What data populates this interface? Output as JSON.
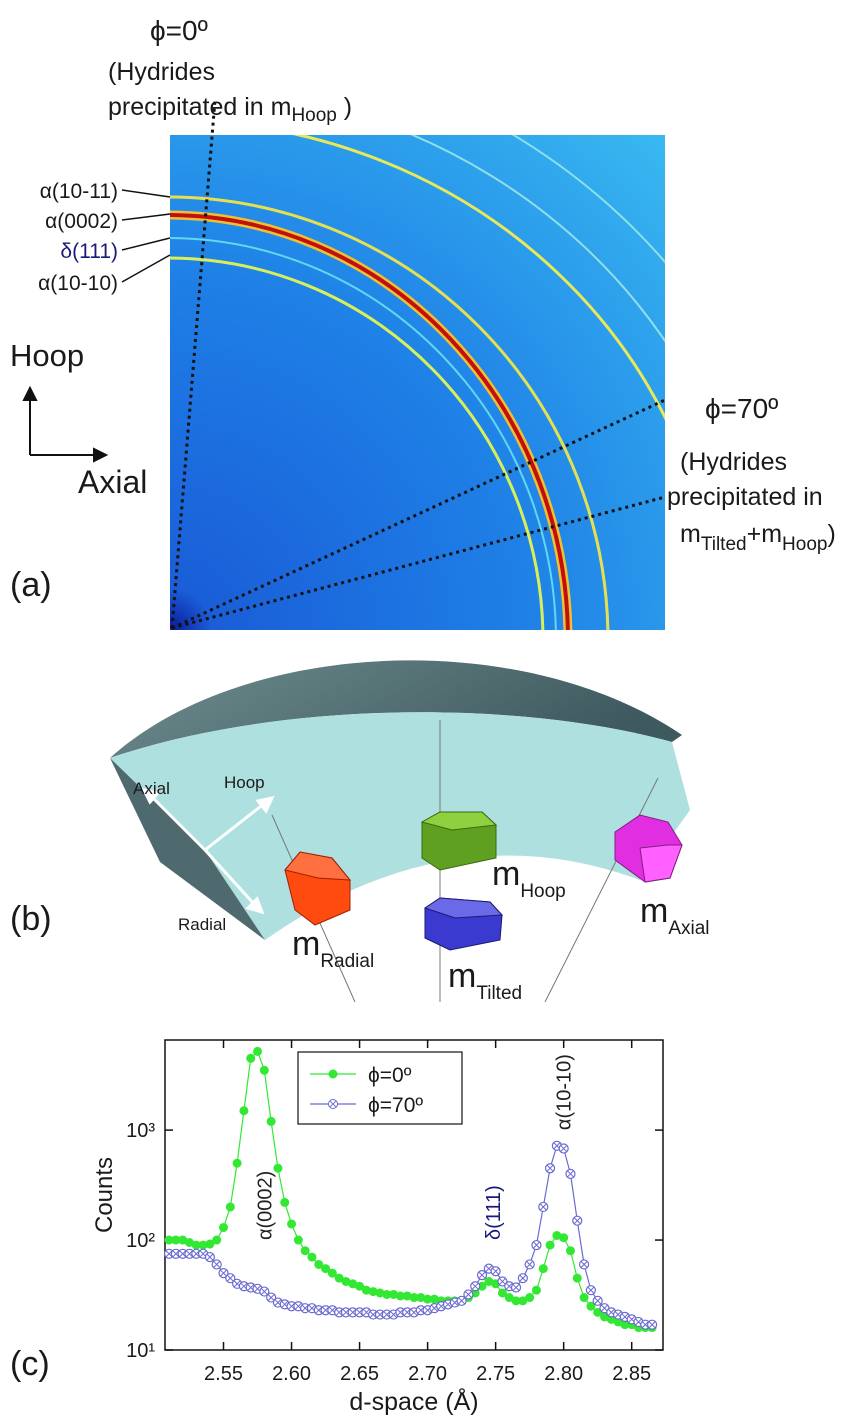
{
  "panel_a": {
    "phi0": "ϕ=0º",
    "phi0_note_1": "(Hydrides",
    "phi0_note_2": "precipitated in m",
    "phi0_note_sub": "Hoop",
    "phi0_note_end": " )",
    "rings": [
      "α(10-11)",
      "α(0002)",
      "δ(111)",
      "α(10-10)"
    ],
    "dir_up": "Hoop",
    "dir_right": "Axial",
    "label": "(a)",
    "phi70": "ϕ=70º",
    "phi70_note_1": "(Hydrides",
    "phi70_note_2": "precipitated in",
    "phi70_m1": "m",
    "phi70_sub1": "Tilted",
    "phi70_m2": "+m",
    "phi70_sub2": "Hoop",
    "phi70_end": ")"
  },
  "panel_b": {
    "axial": "Axial",
    "hoop": "Hoop",
    "radial": "Radial",
    "label": "(b)",
    "crystals": [
      {
        "letter": "m",
        "subscript": "Radial"
      },
      {
        "letter": "m",
        "subscript": "Hoop"
      },
      {
        "letter": "m",
        "subscript": "Tilted"
      },
      {
        "letter": "m",
        "subscript": "Axial"
      }
    ]
  },
  "panel_c": {
    "label": "(c)"
  },
  "chart_data": {
    "type": "line",
    "yscale": "log",
    "xlabel": "d-space (Å)",
    "ylabel": "Counts",
    "xlim": [
      2.507,
      2.873
    ],
    "ylim": [
      10,
      6600
    ],
    "xticks": [
      2.55,
      {
        "value": 2.6,
        "label": "2.60"
      },
      2.65,
      {
        "value": 2.7,
        "label": "2.70"
      },
      2.75,
      {
        "value": 2.8,
        "label": "2.80"
      },
      2.85
    ],
    "yticks": [
      {
        "value": 10,
        "label": "10¹"
      },
      {
        "value": 100,
        "label": "10²"
      },
      {
        "value": 1000,
        "label": "10³"
      }
    ],
    "legend": "top-center",
    "annotations": [
      {
        "text": "α(0002)",
        "x": 2.58,
        "y": 100,
        "color": "#222222"
      },
      {
        "text": "δ(111)",
        "x": 2.748,
        "y": 100,
        "color": "#1a1a7a"
      },
      {
        "text": "α(10-10)",
        "x": 2.8,
        "y": 1000,
        "color": "#222222"
      }
    ],
    "x": [
      2.51,
      2.515,
      2.52,
      2.525,
      2.53,
      2.535,
      2.54,
      2.545,
      2.55,
      2.555,
      2.56,
      2.565,
      2.57,
      2.575,
      2.58,
      2.585,
      2.59,
      2.595,
      2.6,
      2.605,
      2.61,
      2.615,
      2.62,
      2.625,
      2.63,
      2.635,
      2.64,
      2.645,
      2.65,
      2.655,
      2.66,
      2.665,
      2.67,
      2.675,
      2.68,
      2.685,
      2.69,
      2.695,
      2.7,
      2.705,
      2.71,
      2.715,
      2.72,
      2.725,
      2.73,
      2.735,
      2.74,
      2.745,
      2.75,
      2.755,
      2.76,
      2.765,
      2.77,
      2.775,
      2.78,
      2.785,
      2.79,
      2.795,
      2.8,
      2.805,
      2.81,
      2.815,
      2.82,
      2.825,
      2.83,
      2.835,
      2.84,
      2.845,
      2.85,
      2.855,
      2.86,
      2.865
    ],
    "series": [
      {
        "name": "ϕ=0º",
        "color": "#33e833",
        "marker": "filled-circle",
        "values": [
          100,
          100,
          100,
          95,
          90,
          90,
          92,
          100,
          130,
          200,
          500,
          1500,
          4500,
          5200,
          3500,
          1200,
          450,
          220,
          140,
          100,
          80,
          70,
          60,
          55,
          50,
          45,
          42,
          40,
          38,
          35,
          34,
          33,
          32,
          32,
          31,
          31,
          30,
          30,
          29,
          29,
          28,
          28,
          28,
          28,
          30,
          33,
          38,
          42,
          40,
          33,
          30,
          28,
          28,
          30,
          35,
          55,
          90,
          110,
          105,
          80,
          45,
          30,
          25,
          22,
          20,
          19,
          18,
          17,
          17,
          16,
          16,
          16
        ]
      },
      {
        "name": "ϕ=70º",
        "color": "#6a6ad0",
        "marker": "crossed-circle",
        "values": [
          75,
          75,
          75,
          75,
          75,
          75,
          70,
          60,
          50,
          45,
          40,
          38,
          37,
          36,
          34,
          30,
          27,
          26,
          25,
          25,
          24,
          24,
          23,
          23,
          23,
          22,
          22,
          22,
          22,
          22,
          21,
          21,
          21,
          21,
          22,
          22,
          22,
          23,
          23,
          24,
          25,
          26,
          27,
          28,
          32,
          38,
          48,
          55,
          52,
          42,
          38,
          37,
          45,
          60,
          90,
          200,
          450,
          720,
          680,
          400,
          150,
          60,
          35,
          28,
          24,
          22,
          21,
          20,
          19,
          18,
          17,
          17
        ]
      }
    ]
  }
}
